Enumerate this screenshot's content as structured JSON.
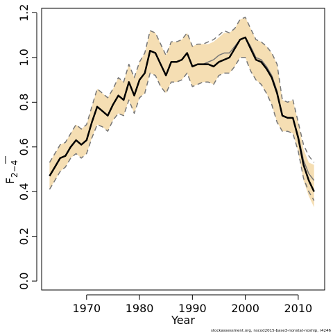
{
  "chart_data": {
    "type": "line",
    "xlabel": "Year",
    "ylabel_main": "F",
    "ylabel_sub": "2−4",
    "footnote": "stockassessment.org, nscod2015-base3-nonstat-noship, r4246",
    "xlim": [
      1961.5,
      2015
    ],
    "ylim": [
      -0.04,
      1.22
    ],
    "x_ticks": [
      1970,
      1980,
      1990,
      2000,
      2010
    ],
    "y_ticks": [
      0.0,
      0.2,
      0.4,
      0.6,
      0.8,
      1.0,
      1.2
    ],
    "y_tick_labels": [
      "0.0",
      "0.2",
      "0.4",
      "0.6",
      "0.8",
      "1.0",
      "1.2"
    ],
    "colors": {
      "band": "#f5deb3",
      "estimate": "#000000",
      "other_run": "#777777"
    },
    "x": [
      1963,
      1964,
      1965,
      1966,
      1967,
      1968,
      1969,
      1970,
      1971,
      1972,
      1973,
      1974,
      1975,
      1976,
      1977,
      1978,
      1979,
      1980,
      1981,
      1982,
      1983,
      1984,
      1985,
      1986,
      1987,
      1988,
      1989,
      1990,
      1991,
      1992,
      1993,
      1994,
      1995,
      1996,
      1997,
      1998,
      1999,
      2000,
      2001,
      2002,
      2003,
      2004,
      2005,
      2006,
      2007,
      2008,
      2009,
      2010,
      2011,
      2012,
      2013
    ],
    "series": [
      {
        "role": "estimate",
        "values": [
          0.47,
          0.51,
          0.55,
          0.56,
          0.6,
          0.63,
          0.61,
          0.63,
          0.71,
          0.78,
          0.76,
          0.74,
          0.79,
          0.83,
          0.81,
          0.89,
          0.83,
          0.9,
          0.93,
          1.03,
          1.02,
          0.97,
          0.92,
          0.98,
          0.98,
          0.99,
          1.02,
          0.96,
          0.97,
          0.97,
          0.97,
          0.96,
          0.98,
          0.99,
          1.0,
          1.04,
          1.08,
          1.09,
          1.04,
          0.99,
          0.98,
          0.95,
          0.91,
          0.84,
          0.74,
          0.73,
          0.73,
          0.64,
          0.52,
          0.45,
          0.4
        ]
      },
      {
        "role": "lower_ci",
        "values": [
          0.41,
          0.45,
          0.49,
          0.51,
          0.55,
          0.57,
          0.55,
          0.57,
          0.64,
          0.7,
          0.69,
          0.67,
          0.72,
          0.75,
          0.74,
          0.81,
          0.75,
          0.82,
          0.84,
          0.93,
          0.92,
          0.87,
          0.84,
          0.89,
          0.89,
          0.9,
          0.93,
          0.87,
          0.88,
          0.89,
          0.89,
          0.88,
          0.92,
          0.93,
          0.93,
          0.96,
          1.0,
          1.0,
          0.94,
          0.9,
          0.88,
          0.84,
          0.79,
          0.71,
          0.67,
          0.67,
          0.66,
          0.58,
          0.45,
          0.38,
          0.33
        ]
      },
      {
        "role": "upper_ci",
        "values": [
          0.53,
          0.57,
          0.61,
          0.62,
          0.66,
          0.7,
          0.68,
          0.7,
          0.78,
          0.86,
          0.84,
          0.82,
          0.86,
          0.91,
          0.89,
          0.97,
          0.91,
          0.98,
          1.02,
          1.12,
          1.11,
          1.06,
          1.01,
          1.07,
          1.07,
          1.08,
          1.11,
          1.05,
          1.06,
          1.06,
          1.06,
          1.07,
          1.09,
          1.11,
          1.11,
          1.13,
          1.17,
          1.18,
          1.13,
          1.08,
          1.07,
          1.05,
          1.02,
          0.97,
          0.81,
          0.8,
          0.81,
          0.71,
          0.59,
          0.53,
          0.52
        ]
      },
      {
        "role": "other_run_estimate",
        "values": [
          0.47,
          0.51,
          0.55,
          0.56,
          0.6,
          0.63,
          0.61,
          0.63,
          0.71,
          0.78,
          0.76,
          0.74,
          0.79,
          0.83,
          0.81,
          0.89,
          0.83,
          0.9,
          0.93,
          1.03,
          1.02,
          0.97,
          0.92,
          0.98,
          0.98,
          0.99,
          1.02,
          0.96,
          0.97,
          0.97,
          0.98,
          0.99,
          1.01,
          1.02,
          1.02,
          1.05,
          1.08,
          1.09,
          1.05,
          1.0,
          0.99,
          0.96,
          0.92,
          0.85,
          0.74,
          0.73,
          0.73,
          0.65,
          0.54,
          0.48,
          0.45
        ]
      },
      {
        "role": "other_run_lower_ci",
        "values": [
          0.41,
          0.45,
          0.49,
          0.51,
          0.55,
          0.57,
          0.55,
          0.57,
          0.64,
          0.7,
          0.69,
          0.67,
          0.72,
          0.75,
          0.74,
          0.81,
          0.75,
          0.82,
          0.84,
          0.93,
          0.92,
          0.87,
          0.84,
          0.89,
          0.89,
          0.9,
          0.93,
          0.87,
          0.88,
          0.89,
          0.89,
          0.88,
          0.92,
          0.93,
          0.93,
          0.96,
          1.0,
          1.0,
          0.94,
          0.9,
          0.88,
          0.84,
          0.79,
          0.71,
          0.67,
          0.67,
          0.66,
          0.58,
          0.46,
          0.4,
          0.36
        ]
      },
      {
        "role": "other_run_upper_ci",
        "values": [
          0.53,
          0.57,
          0.61,
          0.62,
          0.66,
          0.7,
          0.68,
          0.7,
          0.78,
          0.86,
          0.84,
          0.82,
          0.86,
          0.91,
          0.89,
          0.97,
          0.91,
          0.98,
          1.02,
          1.12,
          1.11,
          1.06,
          1.01,
          1.07,
          1.07,
          1.08,
          1.11,
          1.05,
          1.06,
          1.06,
          1.07,
          1.08,
          1.1,
          1.12,
          1.11,
          1.13,
          1.17,
          1.18,
          1.13,
          1.08,
          1.07,
          1.05,
          1.02,
          0.97,
          0.81,
          0.8,
          0.81,
          0.71,
          0.61,
          0.56,
          0.53
        ]
      }
    ]
  }
}
